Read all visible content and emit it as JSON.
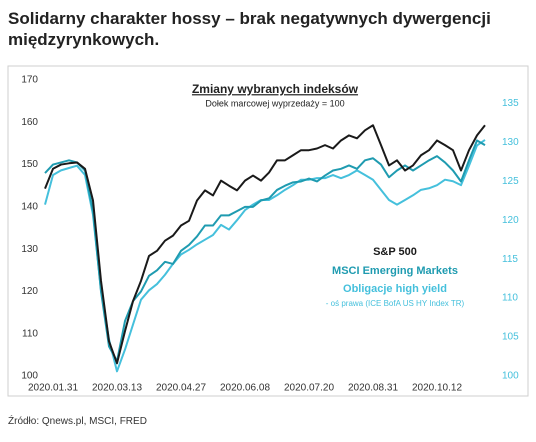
{
  "chart_data": {
    "type": "line",
    "title": "Solidarny charakter hossy – brak negatywnych dywergencji międzyrynkowych.",
    "inset_title": "Zmiany wybranych indeksów",
    "inset_subtitle": "Dołek marcowej wyprzedaży = 100",
    "axis_note": "- oś prawa (ICE BofA US HY Index TR)",
    "source": "Źródło: Qnews.pl, MSCI, FRED",
    "categories": [
      null,
      "2020.01.31",
      null,
      null,
      null,
      null,
      null,
      null,
      null,
      "2020.03.13",
      null,
      null,
      null,
      null,
      null,
      null,
      null,
      "2020.04.27",
      null,
      null,
      null,
      null,
      null,
      null,
      null,
      "2020.06.08",
      null,
      null,
      null,
      null,
      null,
      null,
      null,
      "2020.07.20",
      null,
      null,
      null,
      null,
      null,
      null,
      null,
      "2020.08.31",
      null,
      null,
      null,
      null,
      null,
      null,
      null,
      "2020.10.12",
      null,
      null,
      null,
      null,
      null,
      null
    ],
    "ylim": [
      100,
      170
    ],
    "yticks": [
      100,
      110,
      120,
      130,
      140,
      150,
      160,
      170
    ],
    "y2lim": [
      100,
      138
    ],
    "y2ticks": [
      100,
      105,
      110,
      115,
      120,
      125,
      130,
      135
    ],
    "grid": false,
    "series": [
      {
        "name": "S&P 500",
        "color": "#1a1a1a",
        "values": [
          144.3,
          149,
          150,
          150.3,
          150.5,
          149,
          141.5,
          122.5,
          108.2,
          103,
          110.6,
          117.7,
          122.5,
          128.4,
          129.6,
          132,
          133.2,
          135.6,
          136.7,
          141.5,
          143.9,
          142.7,
          146.2,
          145,
          143.9,
          146.2,
          147.4,
          146.2,
          148.1,
          151,
          151,
          152.2,
          153.4,
          153.4,
          153.8,
          154.6,
          153.8,
          155.7,
          156.9,
          156.2,
          158.1,
          159.3,
          154.6,
          149.8,
          151,
          148.6,
          149.8,
          152.2,
          153.4,
          155.7,
          154.6,
          153.4,
          148.6,
          153.4,
          156.9,
          159.3
        ]
      },
      {
        "name": "MSCI Emerging Markets",
        "color": "#1f9bb0",
        "values": [
          148,
          150,
          150.5,
          151,
          150.5,
          148.6,
          139,
          120,
          107,
          103.5,
          113,
          117.7,
          120,
          123.7,
          125,
          127,
          126.5,
          129.6,
          131,
          133,
          135.6,
          135.6,
          138,
          138,
          139,
          140,
          140,
          141.5,
          142,
          144,
          145,
          145.8,
          146,
          146.7,
          146,
          147.4,
          148.6,
          149,
          149.8,
          149,
          151,
          151.5,
          150,
          147,
          148.6,
          149.8,
          148.6,
          149.8,
          151,
          152,
          150.5,
          148.6,
          146,
          151,
          155.7,
          154.6
        ]
      },
      {
        "name": "Obligacje high yield",
        "color": "#45c0dc",
        "axis": "y2",
        "values": [
          122,
          125.8,
          126.4,
          126.7,
          127,
          125.8,
          120.7,
          111,
          104.7,
          100.6,
          103.4,
          106.6,
          109.8,
          111,
          111.8,
          113,
          114.4,
          115.6,
          116.2,
          116.9,
          117.5,
          118.1,
          119.4,
          118.8,
          120,
          121.3,
          122,
          122.6,
          122.6,
          123.2,
          123.9,
          124.5,
          125.2,
          125.2,
          125.4,
          125.4,
          125.8,
          125.4,
          125.8,
          126.4,
          125.8,
          125.2,
          123.9,
          122.6,
          122,
          122.6,
          123.2,
          123.9,
          124.1,
          124.5,
          125.2,
          125,
          124.5,
          127,
          129.6,
          130.3
        ]
      }
    ]
  }
}
